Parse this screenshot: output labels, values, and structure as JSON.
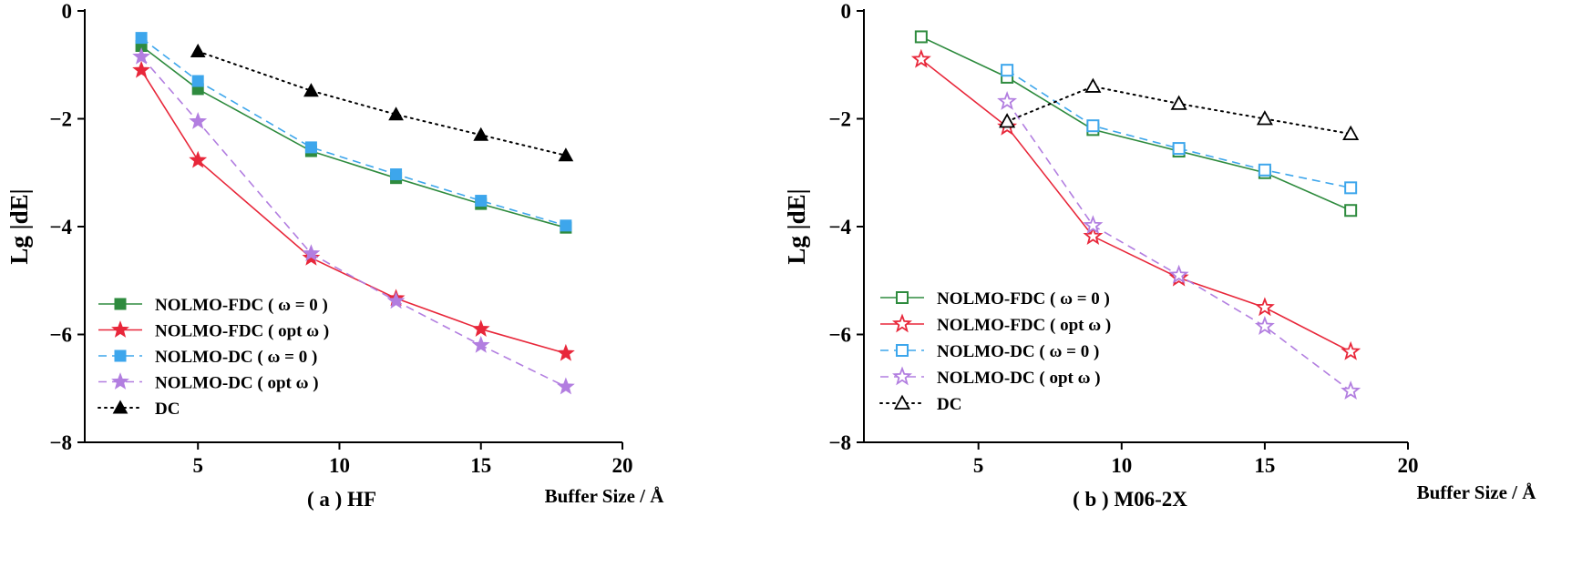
{
  "chart_data": [
    {
      "type": "line",
      "caption": "( a )  HF",
      "xlabel": "Buffer Size / Å",
      "ylabel": "Lg |dE|",
      "xlim": [
        1,
        20
      ],
      "ylim": [
        -8,
        0
      ],
      "xticks": [
        5,
        10,
        15,
        20
      ],
      "yticks": [
        0,
        -2,
        -4,
        -6,
        -8
      ],
      "legend_position": "lower-left",
      "series": [
        {
          "name": "NOLMO-FDC ( ω = 0 )",
          "color": "#2e8b3e",
          "line": "solid",
          "marker": "square",
          "filled": true,
          "x": [
            3,
            5,
            9,
            12,
            15,
            18
          ],
          "y": [
            -0.65,
            -1.45,
            -2.6,
            -3.1,
            -3.58,
            -4.02
          ]
        },
        {
          "name": "NOLMO-FDC ( opt ω )",
          "color": "#e8273a",
          "line": "solid",
          "marker": "star",
          "filled": true,
          "x": [
            3,
            5,
            9,
            12,
            15,
            18
          ],
          "y": [
            -1.1,
            -2.77,
            -4.58,
            -5.33,
            -5.9,
            -6.35
          ]
        },
        {
          "name": "NOLMO-DC ( ω = 0 )",
          "color": "#3da6ec",
          "line": "dashed",
          "marker": "square",
          "filled": true,
          "x": [
            3,
            5,
            9,
            12,
            15,
            18
          ],
          "y": [
            -0.5,
            -1.3,
            -2.53,
            -3.03,
            -3.52,
            -3.98
          ]
        },
        {
          "name": "NOLMO-DC ( opt ω )",
          "color": "#b27ee0",
          "line": "dashed",
          "marker": "star",
          "filled": true,
          "x": [
            3,
            5,
            9,
            12,
            15,
            18
          ],
          "y": [
            -0.85,
            -2.05,
            -4.5,
            -5.38,
            -6.2,
            -6.97
          ]
        },
        {
          "name": "DC",
          "color": "#000000",
          "line": "dotted",
          "marker": "triangle",
          "filled": true,
          "x": [
            5,
            9,
            12,
            15,
            18
          ],
          "y": [
            -0.75,
            -1.48,
            -1.92,
            -2.3,
            -2.68
          ]
        }
      ]
    },
    {
      "type": "line",
      "caption": "( b )  M06-2X",
      "xlabel": "Buffer Size / Å",
      "ylabel": "Lg |dE|",
      "xlim": [
        1,
        20
      ],
      "ylim": [
        -8,
        0
      ],
      "xticks": [
        5,
        10,
        15,
        20
      ],
      "yticks": [
        0,
        -2,
        -4,
        -6,
        -8
      ],
      "legend_position": "lower-left",
      "series": [
        {
          "name": "NOLMO-FDC ( ω = 0 )",
          "color": "#2e8b3e",
          "line": "solid",
          "marker": "square",
          "filled": false,
          "x": [
            3,
            6,
            9,
            12,
            15,
            18
          ],
          "y": [
            -0.48,
            -1.23,
            -2.2,
            -2.6,
            -3.0,
            -3.7
          ]
        },
        {
          "name": "NOLMO-FDC ( opt ω )",
          "color": "#e8273a",
          "line": "solid",
          "marker": "star",
          "filled": false,
          "x": [
            3,
            6,
            9,
            12,
            15,
            18
          ],
          "y": [
            -0.9,
            -2.15,
            -4.18,
            -4.95,
            -5.5,
            -6.32
          ]
        },
        {
          "name": "NOLMO-DC ( ω = 0 )",
          "color": "#3da6ec",
          "line": "dashed",
          "marker": "square",
          "filled": false,
          "x": [
            6,
            9,
            12,
            15,
            18
          ],
          "y": [
            -1.1,
            -2.13,
            -2.55,
            -2.95,
            -3.28
          ]
        },
        {
          "name": "NOLMO-DC ( opt ω )",
          "color": "#b27ee0",
          "line": "dashed",
          "marker": "star",
          "filled": false,
          "x": [
            6,
            9,
            12,
            15,
            18
          ],
          "y": [
            -1.68,
            -3.98,
            -4.9,
            -5.85,
            -7.05
          ]
        },
        {
          "name": "DC",
          "color": "#000000",
          "line": "dotted",
          "marker": "triangle",
          "filled": false,
          "x": [
            6,
            9,
            12,
            15,
            18
          ],
          "y": [
            -2.05,
            -1.4,
            -1.72,
            -2.0,
            -2.28
          ]
        }
      ]
    }
  ]
}
